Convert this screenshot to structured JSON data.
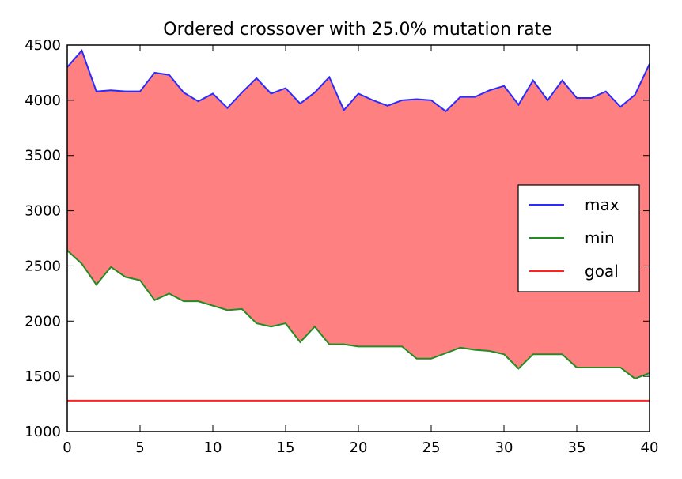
{
  "chart_data": {
    "type": "area",
    "title": "Ordered crossover with 25.0% mutation rate",
    "xlabel": "",
    "ylabel": "",
    "xlim": [
      0,
      40
    ],
    "ylim": [
      1000,
      4500
    ],
    "xticks": [
      0,
      5,
      10,
      15,
      20,
      25,
      30,
      35,
      40
    ],
    "yticks": [
      1000,
      1500,
      2000,
      2500,
      3000,
      3500,
      4000,
      4500
    ],
    "grid": false,
    "legend_position": "center-right",
    "fill_between": {
      "lower": "min",
      "upper": "max",
      "color": "#ff8080"
    },
    "x": [
      0,
      1,
      2,
      3,
      4,
      5,
      6,
      7,
      8,
      9,
      10,
      11,
      12,
      13,
      14,
      15,
      16,
      17,
      18,
      19,
      20,
      21,
      22,
      23,
      24,
      25,
      26,
      27,
      28,
      29,
      30,
      31,
      32,
      33,
      34,
      35,
      36,
      37,
      38,
      39,
      40
    ],
    "series": [
      {
        "name": "max",
        "color": "#2b2bff",
        "values": [
          4300,
          4450,
          4080,
          4090,
          4080,
          4080,
          4250,
          4230,
          4070,
          3990,
          4060,
          3930,
          4070,
          4200,
          4060,
          4110,
          3970,
          4070,
          4210,
          3910,
          4060,
          4000,
          3950,
          4000,
          4010,
          4000,
          3900,
          4030,
          4030,
          4090,
          4130,
          3960,
          4180,
          4000,
          4180,
          4020,
          4020,
          4080,
          3940,
          4050,
          4330
        ]
      },
      {
        "name": "min",
        "color": "#228b22",
        "values": [
          2640,
          2520,
          2330,
          2490,
          2400,
          2370,
          2190,
          2250,
          2180,
          2180,
          2140,
          2100,
          2110,
          1980,
          1950,
          1980,
          1810,
          1950,
          1790,
          1790,
          1770,
          1770,
          1770,
          1770,
          1660,
          1660,
          1710,
          1760,
          1740,
          1730,
          1700,
          1570,
          1700,
          1700,
          1700,
          1580,
          1580,
          1580,
          1580,
          1480,
          1530
        ]
      },
      {
        "name": "goal",
        "color": "#ff2020",
        "values": [
          1280,
          1280,
          1280,
          1280,
          1280,
          1280,
          1280,
          1280,
          1280,
          1280,
          1280,
          1280,
          1280,
          1280,
          1280,
          1280,
          1280,
          1280,
          1280,
          1280,
          1280,
          1280,
          1280,
          1280,
          1280,
          1280,
          1280,
          1280,
          1280,
          1280,
          1280,
          1280,
          1280,
          1280,
          1280,
          1280,
          1280,
          1280,
          1280,
          1280,
          1280
        ]
      }
    ]
  }
}
